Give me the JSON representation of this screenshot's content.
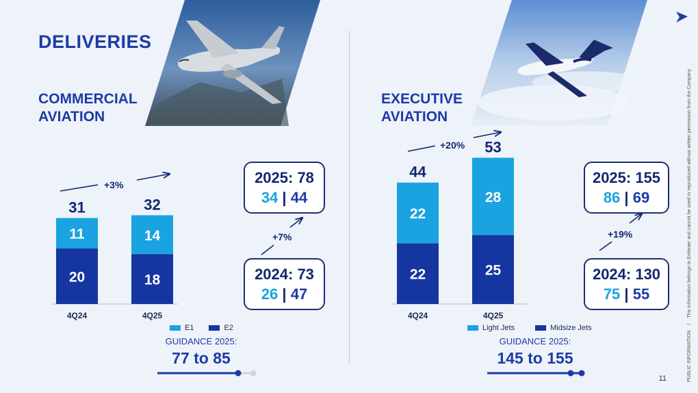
{
  "header": {
    "title": "DELIVERIES"
  },
  "commercial": {
    "title_line1": "COMMERCIAL",
    "title_line2": "AVIATION",
    "growth": "+3%",
    "callout_2025": {
      "title": "2025: 78",
      "a": "34",
      "sep": "|",
      "b": "44"
    },
    "callout_2024": {
      "title": "2024: 73",
      "a": "26",
      "sep": "|",
      "b": "47"
    },
    "yoy": "+7%",
    "legend": [
      "E1",
      "E2"
    ],
    "guidance_label": "GUIDANCE 2025:",
    "guidance_value": "77 to 85"
  },
  "executive": {
    "title_line1": "EXECUTIVE",
    "title_line2": "AVIATION",
    "growth": "+20%",
    "callout_2025": {
      "title": "2025: 155",
      "a": "86",
      "sep": "|",
      "b": "69"
    },
    "callout_2024": {
      "title": "2024: 130",
      "a": "75",
      "sep": "|",
      "b": "55"
    },
    "yoy": "+19%",
    "legend": [
      "Light Jets",
      "Midsize Jets"
    ],
    "guidance_label": "GUIDANCE 2025:",
    "guidance_value": "145 to 155"
  },
  "colors": {
    "light": "#1aa3e0",
    "dark": "#1535a0",
    "title": "#1d3ba6"
  },
  "footer": {
    "page_number": "11",
    "vertical_label": "PUBLIC INFORMATION",
    "vertical_note": "This information belongs to Embraer and cannot be used or reproduced without written permission from the Company"
  },
  "chart_data": [
    {
      "type": "bar",
      "stacked": true,
      "categories": [
        "4Q24",
        "4Q25"
      ],
      "series": [
        {
          "name": "E2",
          "values": [
            20,
            18
          ]
        },
        {
          "name": "E1",
          "values": [
            11,
            14
          ]
        }
      ],
      "totals": [
        31,
        32
      ],
      "annotation": "+3%"
    },
    {
      "type": "bar",
      "stacked": true,
      "categories": [
        "4Q24",
        "4Q25"
      ],
      "series": [
        {
          "name": "Midsize Jets",
          "values": [
            22,
            25
          ]
        },
        {
          "name": "Light Jets",
          "values": [
            22,
            28
          ]
        }
      ],
      "totals": [
        44,
        53
      ],
      "annotation": "+20%"
    }
  ]
}
